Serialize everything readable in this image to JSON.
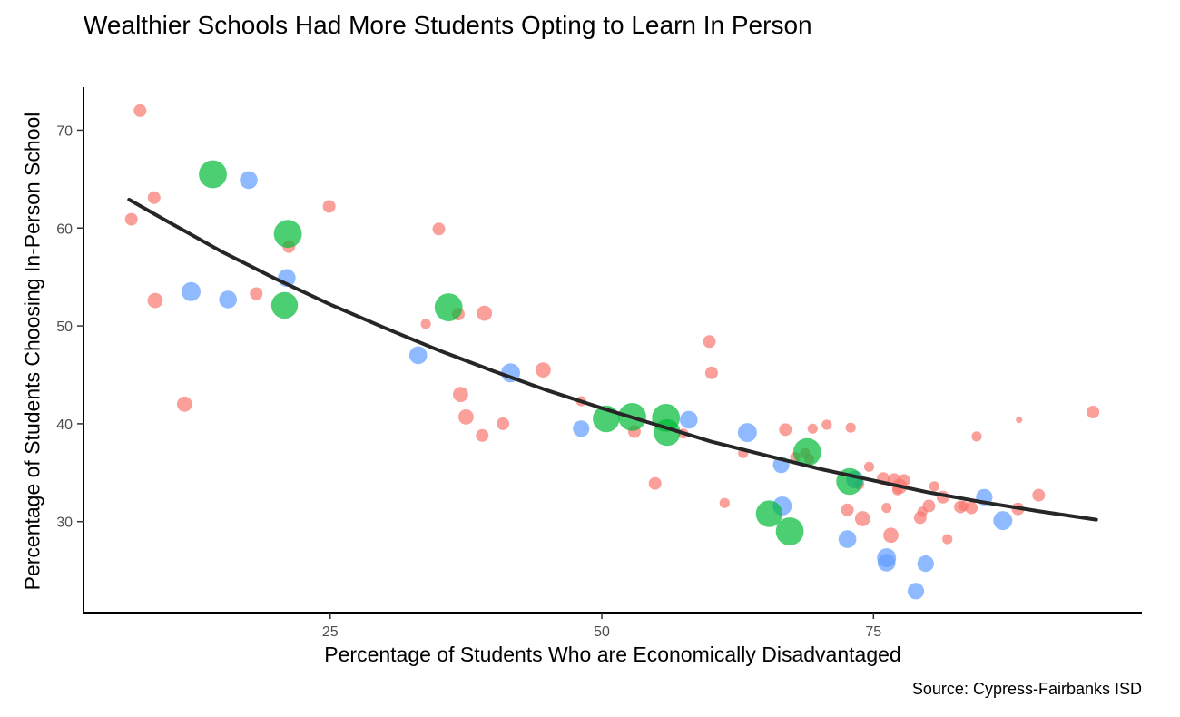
{
  "chart_data": {
    "type": "scatter",
    "title": "Wealthier Schools Had More Students Opting to Learn In Person",
    "caption": "Source: Cypress-Fairbanks ISD",
    "xlabel": "Percentage of Students Who are Economically Disadvantaged",
    "ylabel": "Percentage of Students Choosing In-Person School",
    "xlim": [
      2.3,
      99.7
    ],
    "ylim": [
      20.7,
      74.4
    ],
    "x_ticks": [
      25,
      50,
      75
    ],
    "y_ticks": [
      30,
      40,
      50,
      60,
      70
    ],
    "grid": false,
    "legend": "none",
    "series": [
      {
        "color": "#F8766D",
        "points": [
          [
            7.5,
            72.0
          ],
          [
            8.8,
            63.1
          ],
          [
            6.7,
            60.9
          ],
          [
            8.9,
            52.6
          ],
          [
            11.6,
            42.0
          ],
          [
            18.2,
            53.3
          ],
          [
            21.2,
            58.1
          ],
          [
            24.9,
            62.2
          ],
          [
            33.8,
            50.2
          ],
          [
            35.0,
            59.9
          ],
          [
            36.8,
            51.2
          ],
          [
            39.2,
            51.3
          ],
          [
            37.0,
            43.0
          ],
          [
            37.5,
            40.7
          ],
          [
            39.0,
            38.8
          ],
          [
            40.9,
            40.0
          ],
          [
            44.6,
            45.5
          ],
          [
            48.1,
            42.3
          ],
          [
            53.0,
            39.2
          ],
          [
            54.9,
            33.9
          ],
          [
            57.5,
            39.0
          ],
          [
            59.9,
            48.4
          ],
          [
            60.1,
            45.2
          ],
          [
            61.3,
            31.9
          ],
          [
            63.0,
            37.0
          ],
          [
            66.9,
            39.4
          ],
          [
            67.8,
            36.6
          ],
          [
            68.7,
            37.0
          ],
          [
            69.1,
            36.4
          ],
          [
            69.4,
            39.5
          ],
          [
            70.7,
            39.9
          ],
          [
            72.6,
            31.2
          ],
          [
            72.9,
            39.6
          ],
          [
            73.7,
            33.8
          ],
          [
            74.0,
            30.3
          ],
          [
            74.6,
            35.6
          ],
          [
            75.9,
            34.4
          ],
          [
            76.2,
            31.4
          ],
          [
            76.6,
            28.6
          ],
          [
            76.9,
            34.3
          ],
          [
            77.2,
            33.2
          ],
          [
            77.4,
            33.6
          ],
          [
            77.8,
            34.2
          ],
          [
            79.3,
            30.4
          ],
          [
            79.5,
            31.0
          ],
          [
            80.1,
            31.6
          ],
          [
            80.6,
            33.6
          ],
          [
            81.4,
            32.5
          ],
          [
            81.8,
            28.2
          ],
          [
            83.0,
            31.5
          ],
          [
            83.3,
            31.6
          ],
          [
            84.0,
            31.4
          ],
          [
            84.5,
            38.7
          ],
          [
            88.3,
            31.3
          ],
          [
            88.4,
            40.4
          ],
          [
            90.2,
            32.7
          ],
          [
            95.2,
            41.2
          ]
        ],
        "sizes": [
          2,
          2,
          2,
          2.4,
          2.4,
          2,
          2,
          2,
          1.6,
          2,
          2,
          2.4,
          2.4,
          2.4,
          2,
          2,
          2.4,
          1.6,
          2,
          2,
          1.6,
          2,
          2,
          1.6,
          1.6,
          2,
          1.6,
          1.6,
          1.6,
          1.6,
          1.6,
          2,
          1.6,
          1.6,
          2.4,
          1.6,
          2,
          1.6,
          2.4,
          2,
          1.6,
          2.4,
          2,
          2,
          1.6,
          2,
          1.6,
          2,
          1.6,
          2,
          1.6,
          2,
          1.6,
          2,
          1,
          2,
          2
        ]
      },
      {
        "color": "#619CFF",
        "points": [
          [
            12.2,
            53.5
          ],
          [
            15.6,
            52.7
          ],
          [
            17.5,
            64.9
          ],
          [
            21.0,
            54.9
          ],
          [
            33.1,
            47.0
          ],
          [
            41.6,
            45.2
          ],
          [
            48.1,
            39.5
          ],
          [
            58.0,
            40.4
          ],
          [
            63.4,
            39.1
          ],
          [
            66.5,
            35.8
          ],
          [
            66.6,
            31.6
          ],
          [
            72.6,
            28.2
          ],
          [
            73.3,
            34.3
          ],
          [
            76.2,
            26.3
          ],
          [
            76.2,
            25.8
          ],
          [
            78.9,
            22.9
          ],
          [
            79.8,
            25.7
          ],
          [
            85.2,
            32.5
          ],
          [
            86.9,
            30.1
          ]
        ],
        "sizes": [
          3,
          2.8,
          2.8,
          2.8,
          2.8,
          3,
          2.6,
          2.8,
          3,
          2.6,
          3,
          2.8,
          2.8,
          3,
          2.8,
          2.6,
          2.6,
          2.6,
          3
        ]
      },
      {
        "color": "#00BA38",
        "points": [
          [
            14.2,
            65.5
          ],
          [
            21.1,
            59.4
          ],
          [
            20.8,
            52.1
          ],
          [
            35.9,
            51.9
          ],
          [
            50.4,
            40.5
          ],
          [
            52.8,
            40.7
          ],
          [
            55.9,
            40.6
          ],
          [
            56.0,
            39.1
          ],
          [
            65.4,
            30.8
          ],
          [
            67.3,
            29.0
          ],
          [
            68.9,
            37.1
          ],
          [
            72.8,
            34.1
          ]
        ],
        "sizes": [
          4.4,
          4.4,
          4.2,
          4.4,
          4.2,
          4.4,
          4.4,
          4.2,
          4.2,
          4.4,
          4.4,
          4.2
        ]
      }
    ],
    "trend": {
      "color": "#262626",
      "x": [
        6.5,
        10,
        15,
        20,
        25,
        30,
        35,
        40,
        45,
        50,
        55,
        60,
        65,
        70,
        75,
        80,
        85,
        90,
        95.5
      ],
      "y": [
        62.9,
        60.7,
        57.6,
        54.8,
        52.2,
        49.8,
        47.5,
        45.4,
        43.4,
        41.6,
        39.9,
        38.2,
        36.8,
        35.4,
        34.2,
        33.0,
        32.0,
        31.1,
        30.2
      ]
    }
  }
}
